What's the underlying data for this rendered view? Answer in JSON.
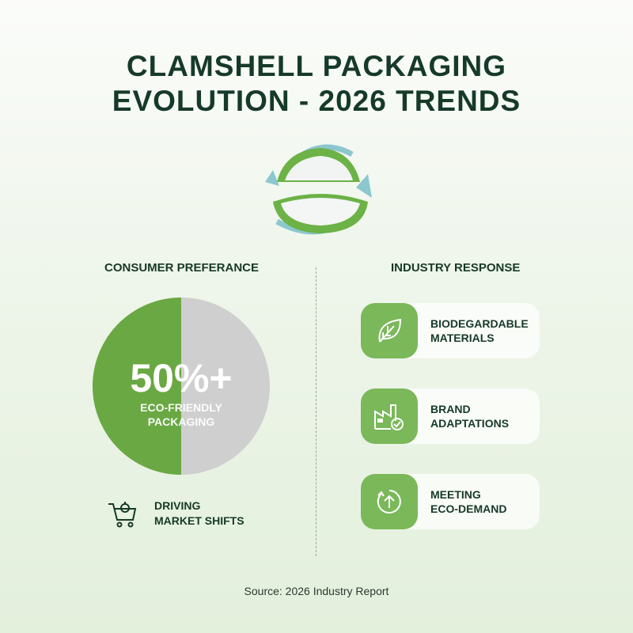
{
  "title": {
    "line1": "CLAMSHELL PACKAGING",
    "line2": "EVOLUTION - 2026 TRENDS"
  },
  "left": {
    "heading": "CONSUMER PREFERANCE",
    "stat": "50%+",
    "stat_label1": "ECO-FRIENDLY",
    "stat_label2": "PACKAGING",
    "driver": {
      "icon": "shopping-cart-icon",
      "line1": "DRIVING",
      "line2": "MARKET SHIFTS"
    }
  },
  "right": {
    "heading": "INDUSTRY RESPONSE",
    "items": [
      {
        "icon": "leaf-icon",
        "line1": "BIODEGARDABLE",
        "line2": "MATERIALS"
      },
      {
        "icon": "factory-check-icon",
        "line1": "BRAND",
        "line2": "ADAPTATIONS"
      },
      {
        "icon": "circular-arrow-up-icon",
        "line1": "MEETING",
        "line2": "ECO-DEMAND"
      }
    ]
  },
  "source": "Source: 2026 Industry Report",
  "colors": {
    "green": "#6aa843",
    "grey": "#cfcfcf",
    "dark": "#173a27",
    "icon_bg": "#7ab85a"
  },
  "chart_data": {
    "type": "pie",
    "values": [
      50,
      50
    ],
    "colors": [
      "#6aa843",
      "#cfcfcf"
    ],
    "annotation": "50%+ ECO-FRIENDLY PACKAGING"
  }
}
